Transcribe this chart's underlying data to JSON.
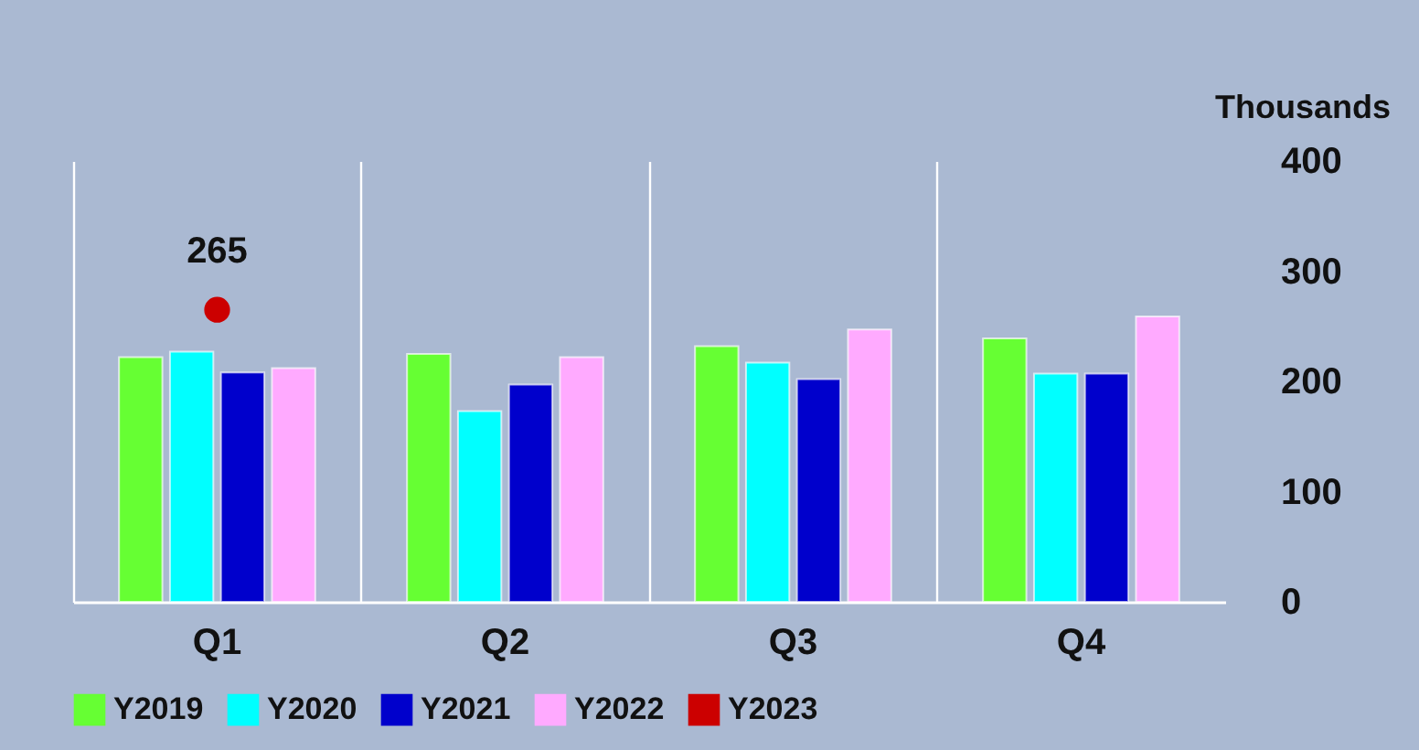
{
  "chart_data": {
    "type": "bar",
    "ylabel": "Thousands",
    "categories": [
      "Q1",
      "Q2",
      "Q3",
      "Q4"
    ],
    "series": [
      {
        "name": "Y2019",
        "color": "#66ff33",
        "values": [
          222,
          225,
          232,
          239
        ]
      },
      {
        "name": "Y2020",
        "color": "#00ffff",
        "values": [
          227,
          173,
          217,
          207
        ]
      },
      {
        "name": "Y2021",
        "color": "#0000cc",
        "values": [
          208,
          197,
          202,
          207
        ]
      },
      {
        "name": "Y2022",
        "color": "#ffaaff",
        "values": [
          212,
          222,
          247,
          259
        ]
      },
      {
        "name": "Y2023",
        "color": "#cc0000",
        "type": "line",
        "values": [
          265,
          null,
          null,
          null
        ],
        "value_labels": [
          "265",
          null,
          null,
          null
        ]
      }
    ],
    "ylim": [
      0,
      400
    ],
    "yticks": [
      0,
      100,
      200,
      300,
      400
    ],
    "grid": "x",
    "legend": "bottom",
    "marker": "circle"
  }
}
